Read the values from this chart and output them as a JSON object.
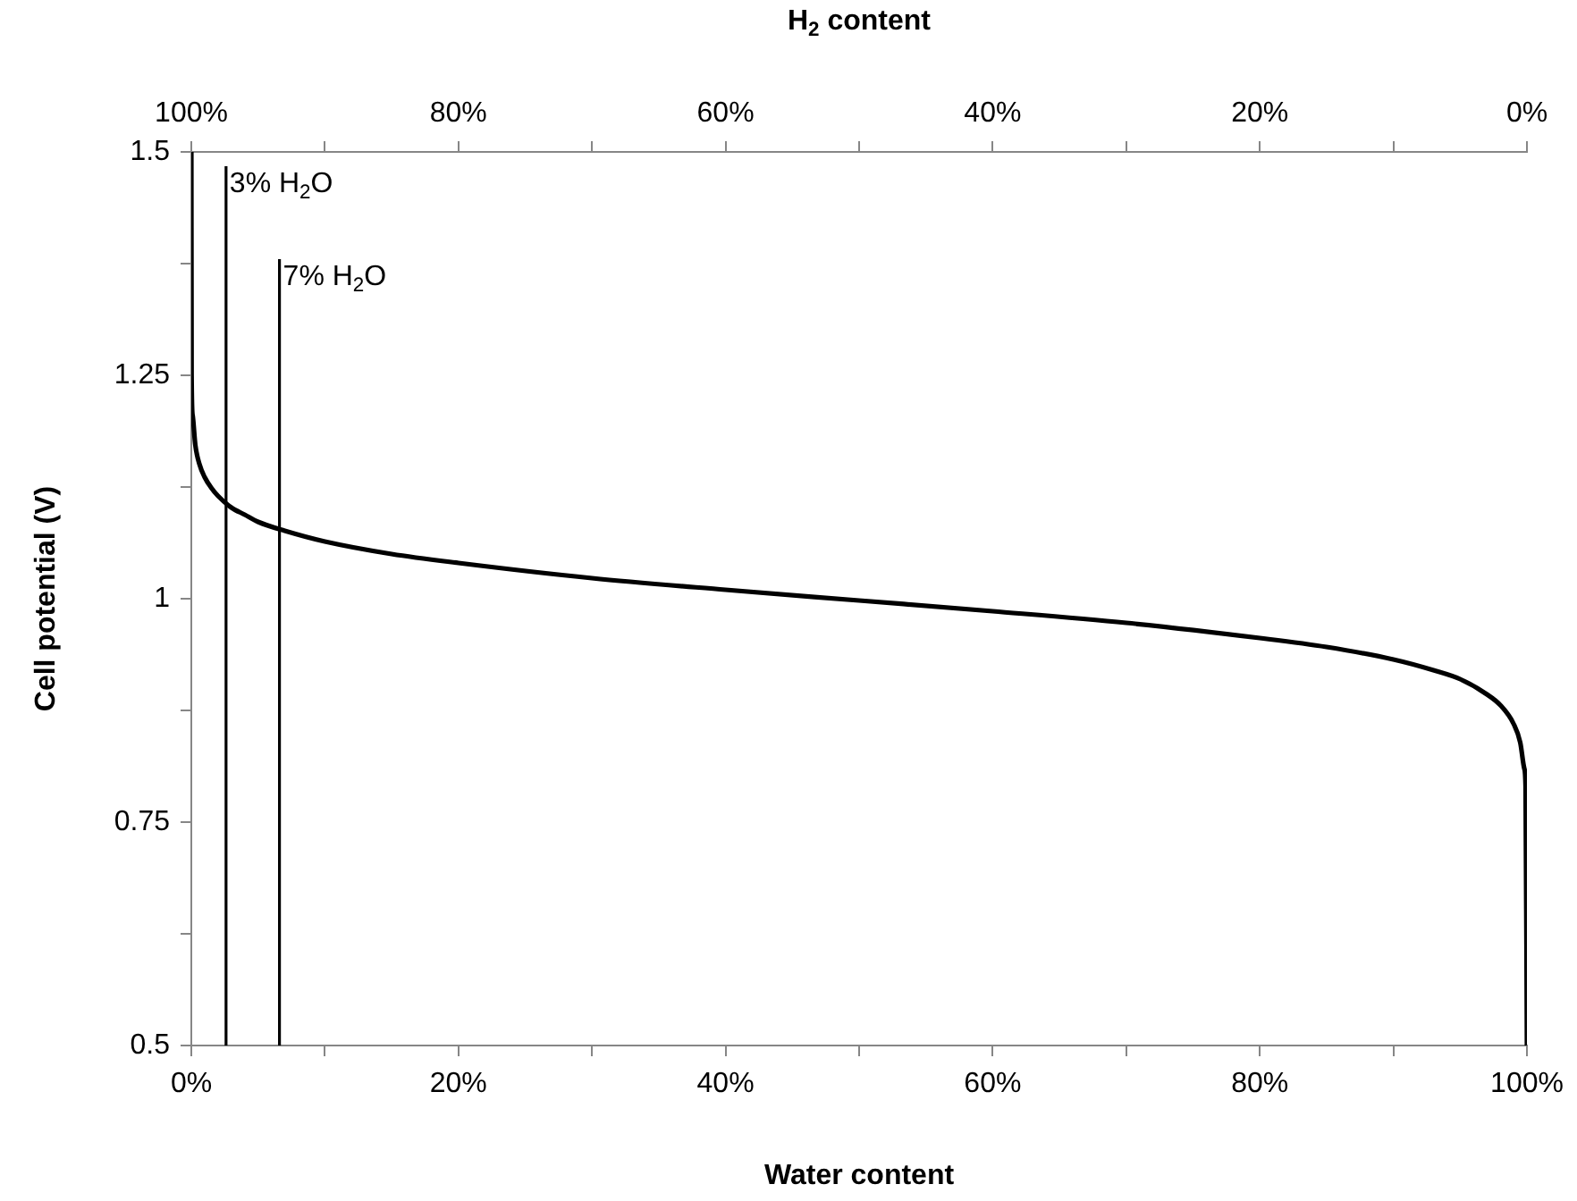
{
  "chart_data": {
    "type": "line",
    "xlabel": "Water content",
    "x2label": "H$_{2}$ content",
    "ylabel": "Cell potential (V)",
    "xlim": [
      0,
      100
    ],
    "xticks": [
      {
        "value": 0,
        "label": "0%"
      },
      {
        "value": 10,
        "label": null
      },
      {
        "value": 20,
        "label": "20%"
      },
      {
        "value": 30,
        "label": null
      },
      {
        "value": 40,
        "label": "40%"
      },
      {
        "value": 50,
        "label": null
      },
      {
        "value": 60,
        "label": "60%"
      },
      {
        "value": 70,
        "label": null
      },
      {
        "value": 80,
        "label": "80%"
      },
      {
        "value": 90,
        "label": null
      },
      {
        "value": 100,
        "label": "100%"
      }
    ],
    "x2lim": [
      100,
      0
    ],
    "x2ticks": [
      {
        "value": 100,
        "label": "100%"
      },
      {
        "value": 90,
        "label": null
      },
      {
        "value": 80,
        "label": "80%"
      },
      {
        "value": 70,
        "label": null
      },
      {
        "value": 60,
        "label": "60%"
      },
      {
        "value": 50,
        "label": null
      },
      {
        "value": 40,
        "label": "40%"
      },
      {
        "value": 30,
        "label": null
      },
      {
        "value": 20,
        "label": "20%"
      },
      {
        "value": 10,
        "label": null
      },
      {
        "value": 0,
        "label": "0%"
      }
    ],
    "ylim": [
      0.5,
      1.5
    ],
    "yticks": [
      0.5,
      {
        "value": 0.625,
        "label": null
      },
      0.75,
      {
        "value": 0.875,
        "label": null
      },
      1,
      {
        "value": 1.125,
        "label": null
      },
      1.25,
      {
        "value": 1.375,
        "label": null
      },
      1.5
    ],
    "grid": false,
    "legend": false,
    "marker": "none",
    "line_style": "solid",
    "series": [
      {
        "color": "#000000",
        "x": [
          0,
          0.02,
          0.1,
          0.3,
          0.6,
          1,
          1.5,
          2,
          3,
          4,
          5,
          7,
          10,
          15,
          20,
          30,
          40,
          50,
          60,
          70,
          80,
          85,
          90,
          93,
          95,
          97,
          98,
          99,
          99.5,
          99.8,
          99.9,
          100
        ],
        "values": [
          1.5,
          1.25,
          1.205,
          1.172,
          1.151,
          1.136,
          1.124,
          1.115,
          1.102,
          1.094,
          1.086,
          1.076,
          1.064,
          1.05,
          1.04,
          1.023,
          1.01,
          0.998,
          0.986,
          0.973,
          0.956,
          0.946,
          0.932,
          0.92,
          0.91,
          0.893,
          0.881,
          0.86,
          0.839,
          0.81,
          0.79,
          0.5
        ]
      }
    ],
    "ref_lines": [
      {
        "axis": "x",
        "value": 2.6,
        "label": "3% H$_{2}$O",
        "color": "#000000"
      },
      {
        "axis": "x",
        "value": 6.6,
        "label": "7% H$_{2}$O",
        "color": "#000000"
      }
    ]
  }
}
